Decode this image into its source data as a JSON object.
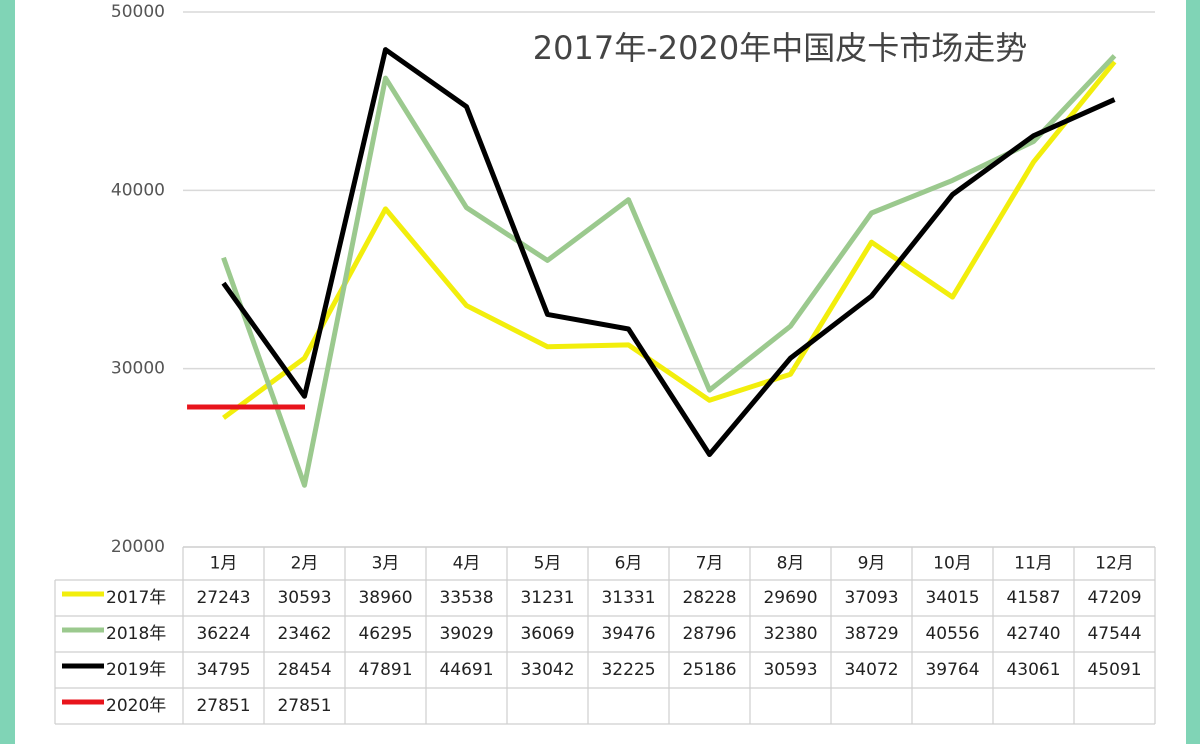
{
  "chart_data": {
    "type": "line",
    "title": "2017年-2020年中国皮卡市场走势",
    "categories": [
      "1月",
      "2月",
      "3月",
      "4月",
      "5月",
      "6月",
      "7月",
      "8月",
      "9月",
      "10月",
      "11月",
      "12月"
    ],
    "series": [
      {
        "name": "2017年",
        "color": "#f2ee0c",
        "values": [
          27243,
          30593,
          38960,
          33538,
          31231,
          31331,
          28228,
          29690,
          37093,
          34015,
          41587,
          47209
        ]
      },
      {
        "name": "2018年",
        "color": "#9bc98e",
        "values": [
          36224,
          23462,
          46295,
          39029,
          36069,
          39476,
          28796,
          32380,
          38729,
          40556,
          42740,
          47544
        ]
      },
      {
        "name": "2019年",
        "color": "#000000",
        "values": [
          34795,
          28454,
          47891,
          44691,
          33042,
          32225,
          25186,
          30593,
          34072,
          39764,
          43061,
          45091
        ]
      },
      {
        "name": "2020年",
        "color": "#e8141c",
        "values": [
          27851,
          27851,
          null,
          null,
          null,
          null,
          null,
          null,
          null,
          null,
          null,
          null
        ]
      }
    ],
    "ylim": [
      20000,
      50000
    ],
    "yticks": [
      20000,
      30000,
      40000,
      50000
    ],
    "grid": true
  }
}
